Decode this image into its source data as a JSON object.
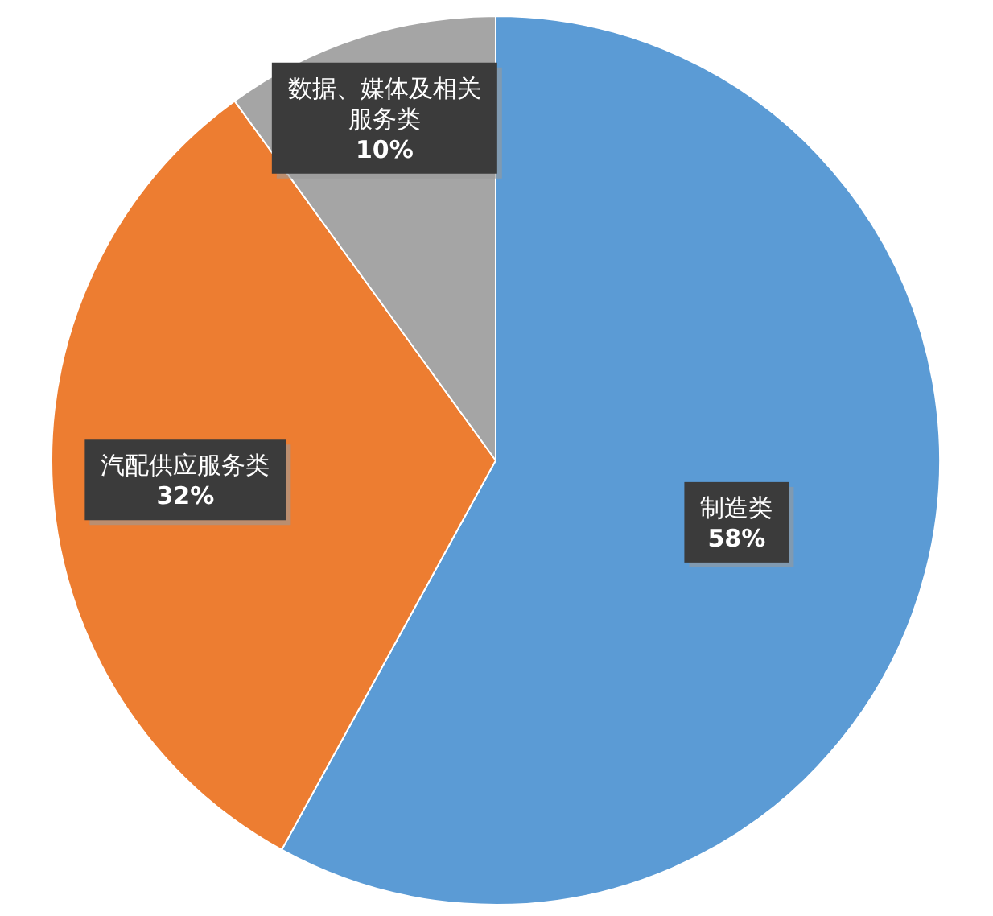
{
  "chart_data": {
    "type": "pie",
    "categories": [
      "制造类",
      "汽配供应服务类",
      "数据、媒体及相关服务类"
    ],
    "values": [
      58,
      32,
      10
    ],
    "colors": [
      "#5b9bd5",
      "#ed7d31",
      "#a5a5a5"
    ],
    "value_labels": [
      "58%",
      "32%",
      "10%"
    ],
    "legend": false
  }
}
